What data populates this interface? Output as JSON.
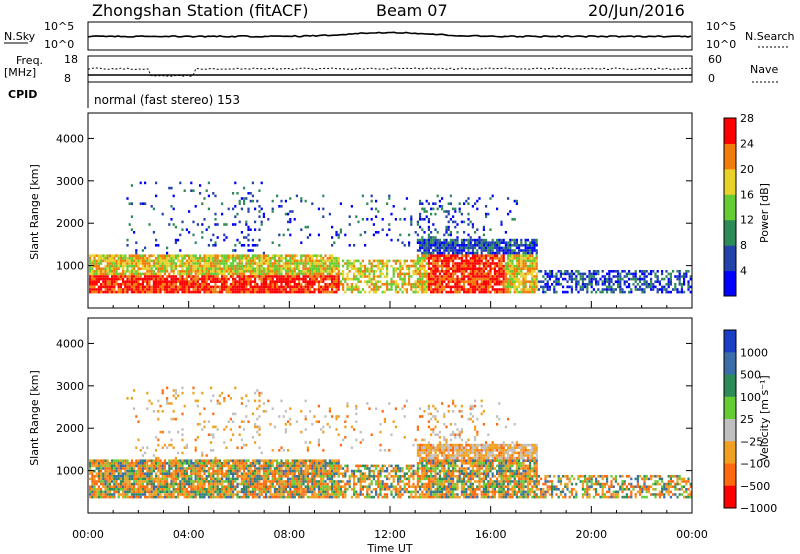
{
  "header": {
    "station": "Zhongshan Station (fitACF)",
    "beam": "Beam 07",
    "date": "20/Jun/2016"
  },
  "top_panels": {
    "nsky_label": "N.Sky",
    "nsky_scale_top": "10^5",
    "nsky_scale_bottom": "10^0",
    "nsearch_label": "N.Search",
    "nsearch_scale_top": "10^5",
    "nsearch_scale_bottom": "10^0",
    "freq_label": "Freq.",
    "freq_unit": "[MHz]",
    "freq_ticks": [
      "18",
      "8"
    ],
    "nave_label": "Nave",
    "nave_ticks": [
      "60",
      "0"
    ],
    "cpid_label": "CPID",
    "cpid_text": "normal (fast stereo) 153"
  },
  "chart_data": [
    {
      "type": "heatmap",
      "name": "power",
      "ylabel": "Slant Range [km]",
      "yticks": [
        "1000",
        "2000",
        "3000",
        "4000"
      ],
      "ylim": [
        0,
        4600
      ],
      "xlim_hours": [
        0,
        24
      ],
      "colorbar_label": "Power [dB]",
      "colorbar_ticks": [
        "4",
        "8",
        "12",
        "16",
        "20",
        "24",
        "28"
      ],
      "colors": [
        "#0000ff",
        "#2244aa",
        "#2e8b57",
        "#66cc33",
        "#e8d22a",
        "#f07c0a",
        "#ff0000"
      ]
    },
    {
      "type": "heatmap",
      "name": "velocity",
      "ylabel": "Slant Range [km]",
      "yticks": [
        "1000",
        "2000",
        "3000",
        "4000"
      ],
      "ylim": [
        0,
        4600
      ],
      "xlim_hours": [
        0,
        24
      ],
      "colorbar_label": "Velocity [m s⁻¹]",
      "colorbar_ticks": [
        "1000",
        "500",
        "100",
        "25",
        "−25",
        "−100",
        "−500",
        "−1000"
      ],
      "colors": [
        "#1a3fc4",
        "#3b6ea8",
        "#2e8b57",
        "#66cc33",
        "#c0c0c0",
        "#f0a020",
        "#ff6a10",
        "#ff0000"
      ]
    }
  ],
  "xaxis": {
    "label": "Time UT",
    "ticks": [
      "00:00",
      "04:00",
      "08:00",
      "12:00",
      "16:00",
      "20:00",
      "00:00"
    ]
  }
}
